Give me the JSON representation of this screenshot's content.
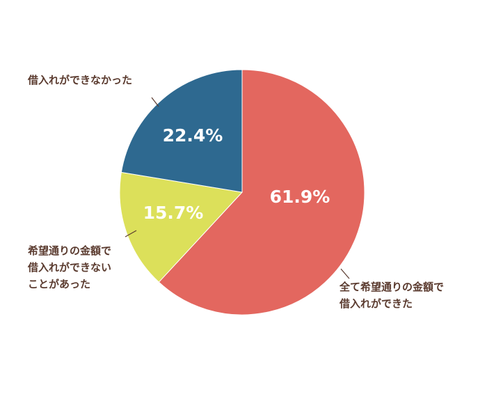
{
  "chart_data": {
    "type": "pie",
    "categories": [
      [
        "全て希望通りの金額で",
        "借入れができた"
      ],
      [
        "希望通りの金額で",
        "借入れができない",
        "ことがあった"
      ],
      [
        "借入れができなかった"
      ]
    ],
    "values": [
      61.9,
      15.7,
      22.4
    ],
    "value_labels": [
      "61.9%",
      "15.7%",
      "22.4%"
    ],
    "colors": [
      "#e3675f",
      "#dce05a",
      "#2e6990"
    ]
  }
}
